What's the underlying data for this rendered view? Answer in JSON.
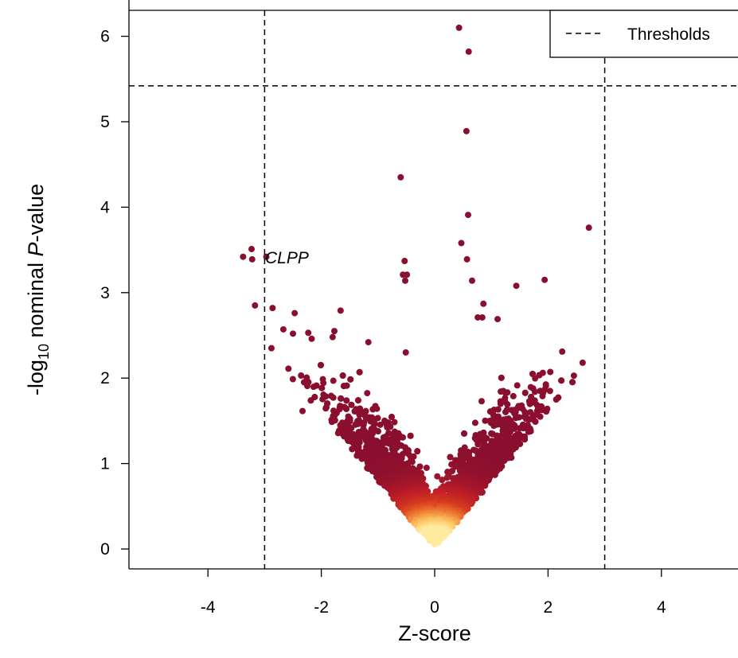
{
  "chart_data": {
    "type": "scatter",
    "title": "",
    "xlabel": "Z-score",
    "ylabel": {
      "prefix": "-log",
      "subscript": "10",
      "middle": " nominal ",
      "italic": "P",
      "suffix": "-value"
    },
    "xlim": [
      -5.3,
      5.3
    ],
    "ylim": [
      -0.25,
      6.3
    ],
    "xticks": [
      -4,
      -2,
      0,
      2,
      4
    ],
    "yticks": [
      0,
      1,
      2,
      3,
      4,
      5,
      6
    ],
    "grid": false,
    "thresholds": {
      "x": [
        -3.0,
        3.0
      ],
      "y": 5.42,
      "linestyle": "dashed",
      "color": "#000000"
    },
    "legend": {
      "position": "top-right",
      "entries": [
        {
          "label": "Thresholds",
          "linestyle": "dashed"
        }
      ]
    },
    "annotations": [
      {
        "text": "CLPP",
        "x": -3.0,
        "y": 3.42,
        "style": "italic"
      }
    ],
    "color_scale": {
      "meaning": "point density",
      "low": "#8a0f2e",
      "mid": "#d7301f",
      "high": "#ffe59a"
    },
    "bulk_distribution": {
      "description": "dense V-shaped cloud of several thousand genes",
      "approx_relation": "y ≈ 0.85 × |x| with spread up to ~2",
      "x_range": [
        -2.9,
        2.7
      ]
    },
    "points": [
      {
        "x": 0.43,
        "y": 6.1
      },
      {
        "x": 0.6,
        "y": 5.82
      },
      {
        "x": 0.56,
        "y": 4.89
      },
      {
        "x": -0.6,
        "y": 4.35
      },
      {
        "x": 0.59,
        "y": 3.91
      },
      {
        "x": 2.72,
        "y": 3.76
      },
      {
        "x": 0.47,
        "y": 3.58
      },
      {
        "x": -3.23,
        "y": 3.51
      },
      {
        "x": -3.38,
        "y": 3.42
      },
      {
        "x": -3.22,
        "y": 3.39
      },
      {
        "x": -2.97,
        "y": 3.42
      },
      {
        "x": 0.57,
        "y": 3.39
      },
      {
        "x": -0.53,
        "y": 3.37
      },
      {
        "x": -0.56,
        "y": 3.21
      },
      {
        "x": -0.49,
        "y": 3.21
      },
      {
        "x": -0.52,
        "y": 3.14
      },
      {
        "x": 0.66,
        "y": 3.14
      },
      {
        "x": 1.94,
        "y": 3.15
      },
      {
        "x": 1.44,
        "y": 3.08
      },
      {
        "x": -3.17,
        "y": 2.85
      },
      {
        "x": -2.86,
        "y": 2.82
      },
      {
        "x": 0.86,
        "y": 2.87
      },
      {
        "x": -1.66,
        "y": 2.79
      },
      {
        "x": 0.84,
        "y": 2.71
      },
      {
        "x": 0.76,
        "y": 2.71
      },
      {
        "x": 1.11,
        "y": 2.69
      },
      {
        "x": -2.47,
        "y": 2.76
      },
      {
        "x": -2.67,
        "y": 2.57
      },
      {
        "x": -2.5,
        "y": 2.52
      },
      {
        "x": -1.77,
        "y": 2.55
      },
      {
        "x": -2.23,
        "y": 2.53
      },
      {
        "x": -1.8,
        "y": 2.48
      },
      {
        "x": -2.17,
        "y": 2.46
      },
      {
        "x": -0.51,
        "y": 2.3
      },
      {
        "x": 2.61,
        "y": 2.18
      },
      {
        "x": 2.25,
        "y": 2.31
      },
      {
        "x": -2.58,
        "y": 2.11
      },
      {
        "x": -1.17,
        "y": 2.42
      },
      {
        "x": -2.88,
        "y": 2.35
      }
    ]
  }
}
